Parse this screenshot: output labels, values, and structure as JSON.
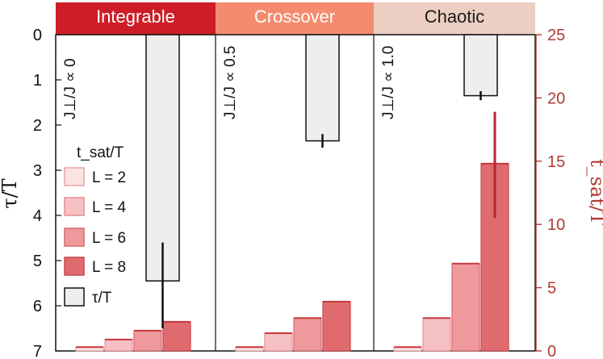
{
  "chart_data": {
    "type": "bar",
    "panels": [
      {
        "title": "Integrable",
        "param_label": "J⊥/J ∝ 0",
        "tau": {
          "value": 5.45,
          "err_low": 4.6,
          "err_high": 6.5
        },
        "tsat": [
          {
            "L": 2,
            "value": 0.3
          },
          {
            "L": 4,
            "value": 0.9
          },
          {
            "L": 6,
            "value": 1.6
          },
          {
            "L": 8,
            "value": 2.3
          }
        ]
      },
      {
        "title": "Crossover",
        "param_label": "J⊥/J ∝ 0.5",
        "tau": {
          "value": 2.35,
          "err_low": 2.2,
          "err_high": 2.5
        },
        "tsat": [
          {
            "L": 2,
            "value": 0.3
          },
          {
            "L": 4,
            "value": 1.4
          },
          {
            "L": 6,
            "value": 2.6
          },
          {
            "L": 8,
            "value": 3.9
          }
        ]
      },
      {
        "title": "Chaotic",
        "param_label": "J⊥/J ∝ 1.0",
        "tau": {
          "value": 1.35,
          "err_low": 1.25,
          "err_high": 1.45
        },
        "tsat": [
          {
            "L": 2,
            "value": 0.3
          },
          {
            "L": 4,
            "value": 2.6
          },
          {
            "L": 6,
            "value": 6.9
          },
          {
            "L": 8,
            "value": 14.8
          }
        ],
        "tsat_err_L8": [
          10.5,
          18.9
        ]
      }
    ],
    "left_axis": {
      "label": "τ/T",
      "range": [
        0,
        7
      ],
      "ticks": [
        0,
        1,
        2,
        3,
        4,
        5,
        6,
        7
      ],
      "inverted": true
    },
    "right_axis": {
      "label": "t_sat/T",
      "range": [
        0,
        25
      ],
      "ticks": [
        0,
        5,
        10,
        15,
        20,
        25
      ]
    },
    "legend": {
      "title": "t_sat/T",
      "entries": [
        {
          "label": "L = 2",
          "color": "#fbe3e3"
        },
        {
          "label": "L = 4",
          "color": "#f6c1c3"
        },
        {
          "label": "L = 6",
          "color": "#ee9a9d"
        },
        {
          "label": "L = 8",
          "color": "#e06b6e"
        },
        {
          "label": "τ/T",
          "color": "#eeeeee"
        }
      ],
      "placement": "left"
    },
    "colors": {
      "header_integrable": "#cd1e27",
      "header_crossover": "#f58b6e",
      "header_chaotic": "#eccfc2",
      "tau_bar": "#eeeeee",
      "error_bar": "#b8252b",
      "right_axis": "#b03a32"
    }
  }
}
